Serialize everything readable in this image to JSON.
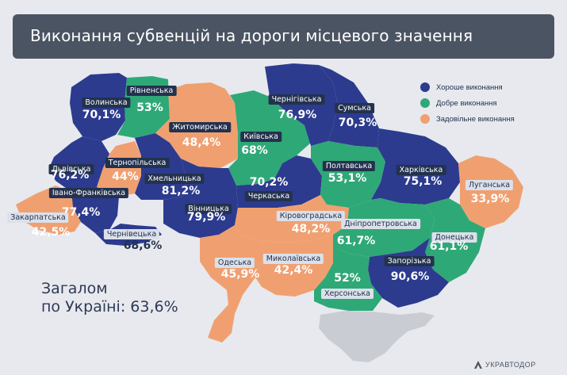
{
  "header": {
    "title": "Виконання субвенцій на дороги місцевого значення"
  },
  "legend": {
    "items": [
      {
        "label": "Хороше виконання",
        "color": "#2c3b8e"
      },
      {
        "label": "Добре виконання",
        "color": "#2fa877"
      },
      {
        "label": "Задовільне виконання",
        "color": "#f0a070"
      }
    ]
  },
  "regions": [
    {
      "id": "volynska",
      "name": "Волинська",
      "value": "70,1%",
      "category": "good"
    },
    {
      "id": "rivnenska",
      "name": "Рівненська",
      "value": "53%",
      "category": "fair"
    },
    {
      "id": "zhytomyrska",
      "name": "Житомирська",
      "value": "48,4%",
      "category": "satisfactory"
    },
    {
      "id": "kyivska",
      "name": "Київська",
      "value": "68%",
      "category": "fair"
    },
    {
      "id": "chernihivska",
      "name": "Чернігівська",
      "value": "76,9%",
      "category": "good"
    },
    {
      "id": "sumska",
      "name": "Сумська",
      "value": "70,3%",
      "category": "good"
    },
    {
      "id": "lvivska",
      "name": "Львівська",
      "value": "76,2%",
      "category": "good"
    },
    {
      "id": "ternopilska",
      "name": "Тернопільська",
      "value": "44%",
      "category": "satisfactory"
    },
    {
      "id": "khmelnytska",
      "name": "Хмельницька",
      "value": "81,2%",
      "category": "good"
    },
    {
      "id": "ivano_frankivska",
      "name": "Івано-Франківська",
      "value": "77,4%",
      "category": "good"
    },
    {
      "id": "zakarpatska",
      "name": "Закарпатська",
      "value": "42,5%",
      "category": "satisfactory"
    },
    {
      "id": "chernivetska",
      "name": "Чернівецька",
      "value": "68,6%",
      "category": "good"
    },
    {
      "id": "vinnytska",
      "name": "Вінницька",
      "value": "79,9%",
      "category": "good"
    },
    {
      "id": "cherkaska",
      "name": "Черкаська",
      "value": "70,2%",
      "category": "good"
    },
    {
      "id": "poltavska",
      "name": "Полтавська",
      "value": "53,1%",
      "category": "fair"
    },
    {
      "id": "kharkivska",
      "name": "Харківська",
      "value": "75,1%",
      "category": "good"
    },
    {
      "id": "luhanska",
      "name": "Луганська",
      "value": "33,9%",
      "category": "satisfactory"
    },
    {
      "id": "kirovohradska",
      "name": "Кіровоградська",
      "value": "48,2%",
      "category": "satisfactory"
    },
    {
      "id": "dnipropetrovska",
      "name": "Дніпропетровська",
      "value": "61,7%",
      "category": "fair"
    },
    {
      "id": "donetska",
      "name": "Донецька",
      "value": "61,1%",
      "category": "fair"
    },
    {
      "id": "odeska",
      "name": "Одеська",
      "value": "45,9%",
      "category": "satisfactory"
    },
    {
      "id": "mykolaivska",
      "name": "Миколаївська",
      "value": "42,4%",
      "category": "satisfactory"
    },
    {
      "id": "zaporizka",
      "name": "Запорізька",
      "value": "90,6%",
      "category": "good"
    },
    {
      "id": "khersonska",
      "name": "Херсонська",
      "value": "52%",
      "category": "fair"
    }
  ],
  "total": {
    "line1": "Загалом",
    "line2": "по Україні: 63,6%"
  },
  "footer": {
    "logo_text": "УКРАВТОДОР"
  },
  "colors": {
    "good": "#2c3b8e",
    "fair": "#2fa877",
    "satisfactory": "#f0a070",
    "crimea": "#c9ccd3",
    "banner": "#4b5462"
  }
}
